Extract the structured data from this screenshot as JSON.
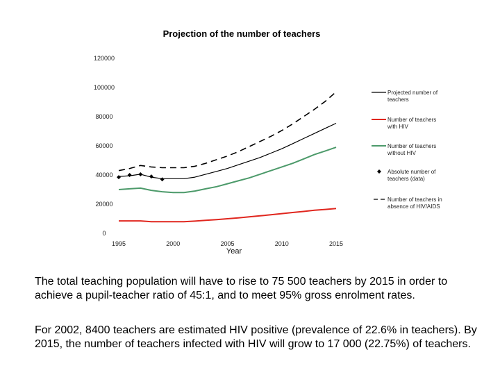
{
  "chart_data": {
    "type": "line",
    "title": "Projection of the number of teachers",
    "xlabel": "Year",
    "ylabel": "",
    "xlim": [
      1995,
      2015
    ],
    "ylim": [
      0,
      120000
    ],
    "x_ticks": [
      "1995",
      "2000",
      "2005",
      "2010",
      "2015"
    ],
    "y_ticks": [
      "0",
      "20000",
      "40000",
      "60000",
      "80000",
      "100000",
      "120000"
    ],
    "grid": false,
    "legend_position": "right",
    "colors": {
      "projected": "#000000",
      "with_hiv": "#e0261e",
      "without_hiv": "#4c9a6a",
      "absolute": "#000000",
      "absence_hiv": "#000000"
    },
    "series": [
      {
        "name": "Projected number of teachers",
        "style": "solid",
        "x": [
          1995,
          1996,
          1997,
          1998,
          1999,
          2000,
          2001,
          2002,
          2003,
          2004,
          2005,
          2006,
          2007,
          2008,
          2009,
          2010,
          2011,
          2012,
          2013,
          2014,
          2015
        ],
        "y": [
          39000,
          39500,
          40500,
          38500,
          37500,
          37500,
          37500,
          38500,
          40500,
          42500,
          44500,
          47000,
          49500,
          52000,
          55000,
          58000,
          61500,
          65000,
          68500,
          72000,
          75500
        ]
      },
      {
        "name": "Number of teachers with HIV",
        "style": "solid",
        "x": [
          1995,
          1996,
          1997,
          1998,
          1999,
          2000,
          2001,
          2002,
          2003,
          2004,
          2005,
          2006,
          2007,
          2008,
          2009,
          2010,
          2011,
          2012,
          2013,
          2014,
          2015
        ],
        "y": [
          8500,
          8500,
          8500,
          8000,
          8000,
          8000,
          8000,
          8400,
          8900,
          9400,
          10000,
          10600,
          11300,
          12000,
          12700,
          13500,
          14300,
          15000,
          15800,
          16400,
          17000
        ]
      },
      {
        "name": "Number of teachers without HIV",
        "style": "solid",
        "x": [
          1995,
          1996,
          1997,
          1998,
          1999,
          2000,
          2001,
          2002,
          2003,
          2004,
          2005,
          2006,
          2007,
          2008,
          2009,
          2010,
          2011,
          2012,
          2013,
          2014,
          2015
        ],
        "y": [
          30000,
          30500,
          31000,
          29500,
          28500,
          28000,
          28000,
          29000,
          30500,
          32000,
          34000,
          36000,
          38000,
          40500,
          43000,
          45500,
          48000,
          51000,
          54000,
          56500,
          59000
        ]
      },
      {
        "name": "Absolute number of teachers (data)",
        "style": "markers",
        "x": [
          1995,
          1996,
          1997,
          1998,
          1999
        ],
        "y": [
          38500,
          40000,
          40500,
          39000,
          37000
        ]
      },
      {
        "name": "Number of teachers in absence of HIV/AIDS",
        "style": "dashed",
        "x": [
          1995,
          1996,
          1997,
          1998,
          1999,
          2000,
          2001,
          2002,
          2003,
          2004,
          2005,
          2006,
          2007,
          2008,
          2009,
          2010,
          2011,
          2012,
          2013,
          2014,
          2015
        ],
        "y": [
          43000,
          44500,
          46500,
          45500,
          45000,
          45000,
          45000,
          46000,
          48000,
          50500,
          53000,
          56000,
          59500,
          63000,
          66500,
          70500,
          75000,
          80000,
          85000,
          90500,
          97000
        ]
      }
    ]
  },
  "legend": {
    "items": [
      {
        "line1": "Projected number of",
        "line2": "teachers"
      },
      {
        "line1": "Number of teachers",
        "line2": "with HIV"
      },
      {
        "line1": "Number of teachers",
        "line2": "without HIV"
      },
      {
        "line1": "Absolute number of",
        "line2": "teachers (data)"
      },
      {
        "line1": "Number of teachers in",
        "line2": "absence of HIV/AIDS"
      }
    ]
  },
  "text": {
    "paragraph_1": "The total teaching population will have to rise to 75 500 teachers by 2015 in order to achieve a pupil-teacher ratio of 45:1, and to meet 95% gross enrolment rates.",
    "paragraph_2": "For 2002, 8400 teachers are estimated HIV positive (prevalence of 22.6% in teachers).  By 2015, the number of teachers infected with HIV will grow to 17 000 (22.75%) of teachers."
  }
}
